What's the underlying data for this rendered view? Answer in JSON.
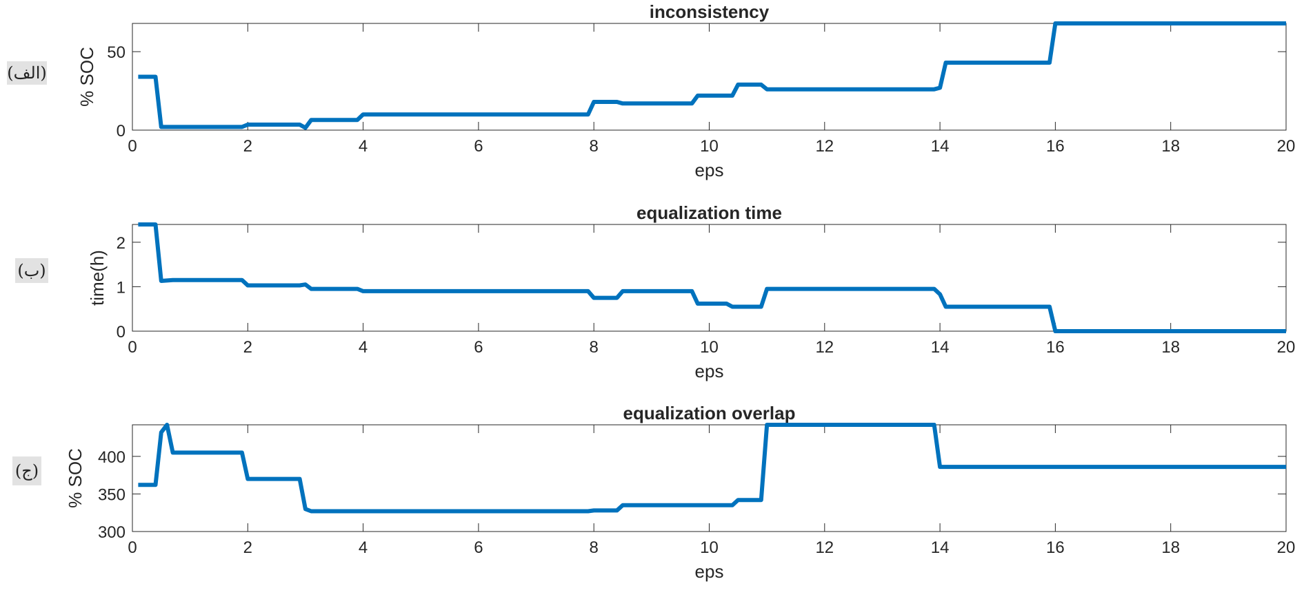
{
  "style": {
    "line_color": "#0072BD",
    "axis_color": "#262626"
  },
  "panel_tags": [
    "(الف)",
    "(ب)",
    "(ج)"
  ],
  "chart_data": [
    {
      "type": "line",
      "title": "inconsistency",
      "xlabel": "eps",
      "ylabel": "% SOC",
      "xlim": [
        0,
        20
      ],
      "ylim": [
        0,
        68
      ],
      "xticks": [
        0,
        2,
        4,
        6,
        8,
        10,
        12,
        14,
        16,
        18,
        20
      ],
      "yticks": [
        0,
        50
      ],
      "grid": false,
      "x": [
        0.1,
        0.4,
        0.5,
        1.9,
        2.0,
        2.9,
        3.0,
        3.1,
        3.9,
        4.0,
        7.9,
        8.0,
        8.4,
        8.5,
        9.7,
        9.8,
        10.4,
        10.5,
        10.9,
        11.0,
        13.9,
        14.0,
        14.1,
        15.9,
        16.0,
        20.0
      ],
      "series": [
        {
          "values": [
            34,
            34,
            2,
            2,
            3.5,
            3.5,
            1.5,
            6.5,
            6.5,
            10,
            10,
            18,
            18,
            17,
            17,
            22,
            22,
            29,
            29,
            26,
            26,
            27,
            43,
            43,
            68,
            68
          ]
        }
      ]
    },
    {
      "type": "line",
      "title": "equalization time",
      "xlabel": "eps",
      "ylabel": "time(h)",
      "xlim": [
        0,
        20
      ],
      "ylim": [
        0,
        2.4
      ],
      "xticks": [
        0,
        2,
        4,
        6,
        8,
        10,
        12,
        14,
        16,
        18,
        20
      ],
      "yticks": [
        0,
        1,
        2
      ],
      "grid": false,
      "x": [
        0.1,
        0.4,
        0.5,
        0.7,
        1.9,
        2.0,
        2.9,
        3.0,
        3.1,
        3.9,
        4.0,
        7.9,
        8.0,
        8.4,
        8.5,
        9.7,
        9.8,
        10.3,
        10.4,
        10.9,
        11.0,
        13.9,
        14.0,
        14.1,
        15.9,
        16.0,
        20.0
      ],
      "series": [
        {
          "values": [
            2.4,
            2.4,
            1.13,
            1.15,
            1.15,
            1.03,
            1.03,
            1.05,
            0.95,
            0.95,
            0.9,
            0.9,
            0.75,
            0.75,
            0.9,
            0.9,
            0.62,
            0.62,
            0.55,
            0.55,
            0.95,
            0.95,
            0.83,
            0.55,
            0.55,
            0.0,
            0.0
          ]
        }
      ]
    },
    {
      "type": "line",
      "title": "equalization overlap",
      "xlabel": "eps",
      "ylabel": "% SOC",
      "xlim": [
        0,
        20
      ],
      "ylim": [
        300,
        442
      ],
      "xticks": [
        0,
        2,
        4,
        6,
        8,
        10,
        12,
        14,
        16,
        18,
        20
      ],
      "yticks": [
        300,
        350,
        400
      ],
      "grid": false,
      "x": [
        0.1,
        0.4,
        0.5,
        0.6,
        0.7,
        1.9,
        2.0,
        2.9,
        3.0,
        3.1,
        7.9,
        8.0,
        8.4,
        8.5,
        10.4,
        10.5,
        10.9,
        11.0,
        13.9,
        14.0,
        20.0
      ],
      "series": [
        {
          "values": [
            362,
            362,
            432,
            442,
            405,
            405,
            370,
            370,
            330,
            327,
            327,
            328,
            328,
            335,
            335,
            342,
            342,
            442,
            442,
            386,
            386
          ]
        }
      ]
    }
  ]
}
